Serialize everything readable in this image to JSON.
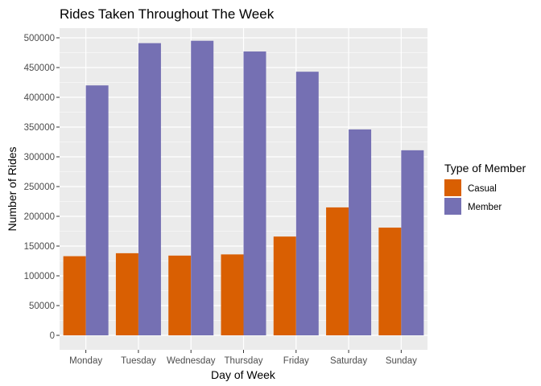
{
  "chart_data": {
    "type": "bar",
    "title": "Rides Taken Throughout The Week",
    "xlabel": "Day of Week",
    "ylabel": "Number of Rides",
    "categories": [
      "Monday",
      "Tuesday",
      "Wednesday",
      "Thursday",
      "Friday",
      "Saturday",
      "Sunday"
    ],
    "series": [
      {
        "name": "Casual",
        "color": "#d95f02",
        "values": [
          133000,
          138000,
          134000,
          136000,
          166000,
          215000,
          181000
        ]
      },
      {
        "name": "Member",
        "color": "#7570b3",
        "values": [
          420000,
          491000,
          495000,
          477000,
          443000,
          346000,
          311000
        ]
      }
    ],
    "yticks": [
      0,
      50000,
      100000,
      150000,
      200000,
      250000,
      300000,
      350000,
      400000,
      450000,
      500000
    ],
    "ylim": [
      0,
      520000
    ],
    "grid": true,
    "legend": {
      "title": "Type of Member",
      "position": "right"
    },
    "panel_background": "#ebebeb"
  }
}
